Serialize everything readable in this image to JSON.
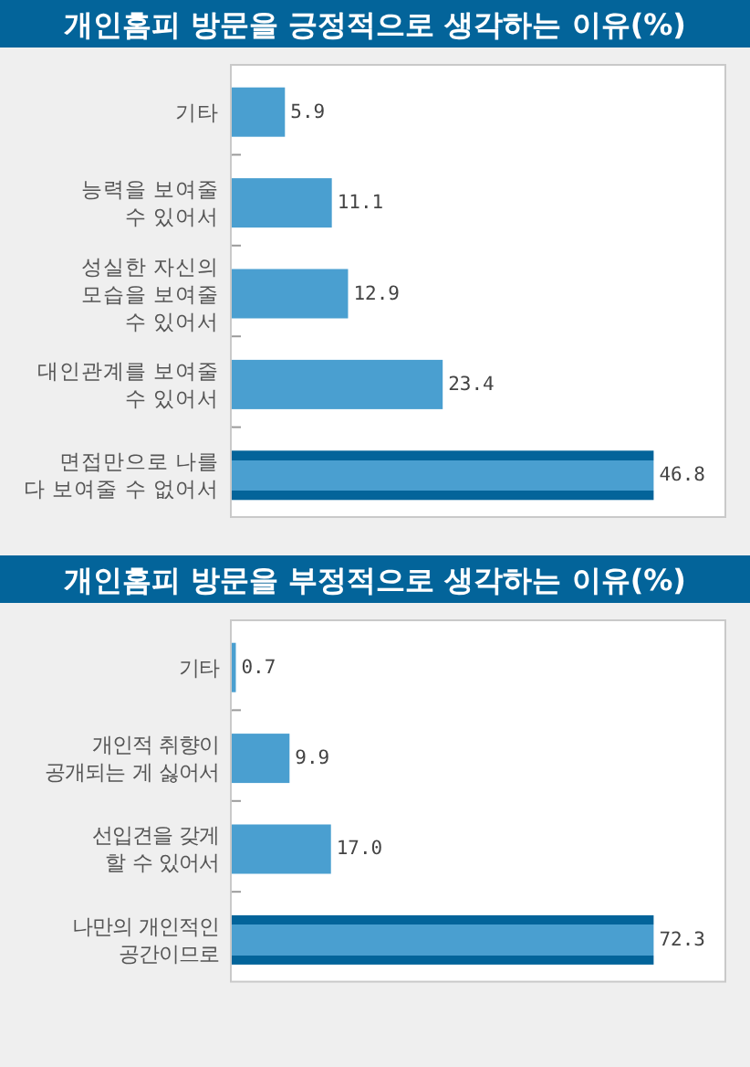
{
  "chart_data": [
    {
      "type": "bar",
      "orientation": "horizontal",
      "title": "개인홈피 방문을 긍정적으로 생각하는 이유(%)",
      "categories": [
        "기타",
        "능력을 보여줄\n수 있어서",
        "성실한 자신의\n모습을 보여줄\n수 있어서",
        "대인관계를 보여줄\n수 있어서",
        "면접만으로 나를\n다 보여줄 수 없어서"
      ],
      "values": [
        5.9,
        11.1,
        12.9,
        23.4,
        46.8
      ],
      "value_labels": [
        "5.9",
        "11.1",
        "12.9",
        "23.4",
        "46.8"
      ],
      "color": "#4a9fd0",
      "colors": [
        "#4a9fd0",
        "#4a9fd0",
        "#4a9fd0",
        "#4a9fd0",
        "#03649a"
      ]
    },
    {
      "type": "bar",
      "orientation": "horizontal",
      "title": "개인홈피 방문을 부정적으로 생각하는 이유(%)",
      "categories": [
        "기타",
        "개인적 취향이\n공개되는 게 싫어서",
        "선입견을 갖게\n할 수 있어서",
        "나만의 개인적인\n공간이므로"
      ],
      "values": [
        0.7,
        9.9,
        17.0,
        72.3
      ],
      "value_labels": [
        "0.7",
        "9.9",
        "17.0",
        "72.3"
      ],
      "color": "#4a9fd0",
      "colors": [
        "#4a9fd0",
        "#4a9fd0",
        "#4a9fd0",
        "#03649a"
      ]
    }
  ]
}
